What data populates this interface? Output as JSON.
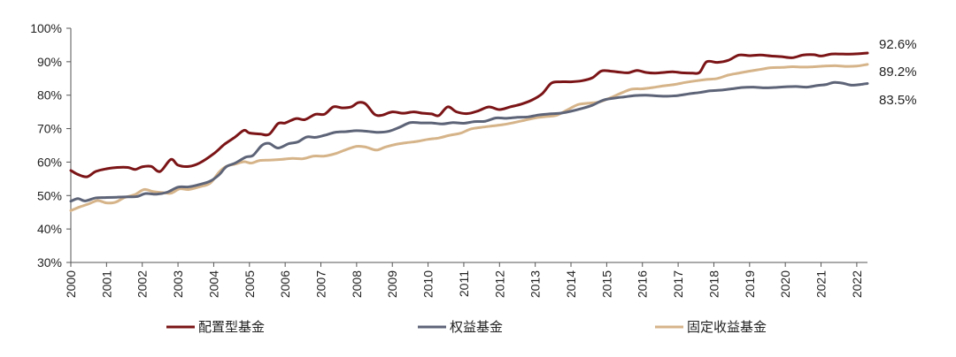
{
  "chart_data": {
    "type": "line",
    "title": "",
    "xlabel": "",
    "ylabel": "",
    "x_ticks": [
      "2000",
      "2001",
      "2002",
      "2003",
      "2004",
      "2005",
      "2006",
      "2007",
      "2008",
      "2009",
      "2010",
      "2011",
      "2012",
      "2013",
      "2014",
      "2015",
      "2016",
      "2017",
      "2018",
      "2019",
      "2020",
      "2021",
      "2022"
    ],
    "y_ticks": [
      "30%",
      "40%",
      "50%",
      "60%",
      "70%",
      "80%",
      "90%",
      "100%"
    ],
    "ylim": [
      30,
      100
    ],
    "xlim": [
      2000,
      2022.3
    ],
    "grid": false,
    "legend_position": "bottom",
    "series": [
      {
        "name": "配置型基金",
        "color": "#7b1416",
        "end_label": "92.6%",
        "points": [
          [
            2000,
            57.5
          ],
          [
            2000.2,
            56.3
          ],
          [
            2000.45,
            55.6
          ],
          [
            2000.7,
            57.2
          ],
          [
            2001,
            58
          ],
          [
            2001.3,
            58.4
          ],
          [
            2001.6,
            58.4
          ],
          [
            2001.8,
            57.8
          ],
          [
            2002,
            58.6
          ],
          [
            2002.25,
            58.7
          ],
          [
            2002.5,
            57.2
          ],
          [
            2002.8,
            60.8
          ],
          [
            2003,
            59.1
          ],
          [
            2003.3,
            58.7
          ],
          [
            2003.6,
            59.7
          ],
          [
            2004,
            62.5
          ],
          [
            2004.3,
            65.3
          ],
          [
            2004.6,
            67.5
          ],
          [
            2004.85,
            69.5
          ],
          [
            2005,
            68.7
          ],
          [
            2005.3,
            68.4
          ],
          [
            2005.55,
            68.3
          ],
          [
            2005.8,
            71.5
          ],
          [
            2006,
            71.7
          ],
          [
            2006.3,
            73
          ],
          [
            2006.55,
            72.7
          ],
          [
            2006.85,
            74.3
          ],
          [
            2007.1,
            74.3
          ],
          [
            2007.35,
            76.5
          ],
          [
            2007.6,
            76.2
          ],
          [
            2007.85,
            76.5
          ],
          [
            2008.05,
            77.8
          ],
          [
            2008.25,
            77.4
          ],
          [
            2008.5,
            74.3
          ],
          [
            2008.7,
            74
          ],
          [
            2009,
            75
          ],
          [
            2009.3,
            74.6
          ],
          [
            2009.6,
            75
          ],
          [
            2009.85,
            74.6
          ],
          [
            2010.1,
            74.4
          ],
          [
            2010.3,
            73.9
          ],
          [
            2010.55,
            76.5
          ],
          [
            2010.8,
            75
          ],
          [
            2011.1,
            74.5
          ],
          [
            2011.4,
            75.3
          ],
          [
            2011.7,
            76.5
          ],
          [
            2012,
            75.7
          ],
          [
            2012.3,
            76.5
          ],
          [
            2012.6,
            77.3
          ],
          [
            2012.9,
            78.5
          ],
          [
            2013.2,
            80.5
          ],
          [
            2013.45,
            83.6
          ],
          [
            2013.7,
            84
          ],
          [
            2014,
            84
          ],
          [
            2014.3,
            84.3
          ],
          [
            2014.6,
            85.2
          ],
          [
            2014.85,
            87.2
          ],
          [
            2015.1,
            87.2
          ],
          [
            2015.35,
            86.9
          ],
          [
            2015.6,
            86.7
          ],
          [
            2015.85,
            87.4
          ],
          [
            2016.1,
            86.8
          ],
          [
            2016.35,
            86.6
          ],
          [
            2016.6,
            86.8
          ],
          [
            2016.85,
            87
          ],
          [
            2017.1,
            86.7
          ],
          [
            2017.4,
            86.6
          ],
          [
            2017.6,
            86.8
          ],
          [
            2017.8,
            90
          ],
          [
            2018.1,
            89.8
          ],
          [
            2018.4,
            90.4
          ],
          [
            2018.7,
            92
          ],
          [
            2019,
            91.8
          ],
          [
            2019.3,
            92
          ],
          [
            2019.6,
            91.7
          ],
          [
            2019.9,
            91.5
          ],
          [
            2020.2,
            91.2
          ],
          [
            2020.5,
            92
          ],
          [
            2020.8,
            92.1
          ],
          [
            2021,
            91.7
          ],
          [
            2021.3,
            92.3
          ],
          [
            2021.6,
            92.3
          ],
          [
            2021.9,
            92.3
          ],
          [
            2022.3,
            92.6
          ]
        ]
      },
      {
        "name": "权益基金",
        "color": "#5e6478",
        "end_label": "83.5%",
        "points": [
          [
            2000,
            48.3
          ],
          [
            2000.2,
            49.1
          ],
          [
            2000.4,
            48.4
          ],
          [
            2000.7,
            49.3
          ],
          [
            2001,
            49.4
          ],
          [
            2001.3,
            49.5
          ],
          [
            2001.6,
            49.6
          ],
          [
            2001.85,
            49.7
          ],
          [
            2002.1,
            50.6
          ],
          [
            2002.4,
            50.4
          ],
          [
            2002.7,
            51
          ],
          [
            2003,
            52.5
          ],
          [
            2003.3,
            52.6
          ],
          [
            2003.6,
            53.3
          ],
          [
            2003.9,
            54.3
          ],
          [
            2004.15,
            56.2
          ],
          [
            2004.35,
            58.6
          ],
          [
            2004.6,
            59.7
          ],
          [
            2004.9,
            61.5
          ],
          [
            2005.1,
            62
          ],
          [
            2005.35,
            65
          ],
          [
            2005.55,
            65.6
          ],
          [
            2005.8,
            64.2
          ],
          [
            2006.1,
            65.5
          ],
          [
            2006.35,
            66
          ],
          [
            2006.6,
            67.5
          ],
          [
            2006.85,
            67.4
          ],
          [
            2007.1,
            68
          ],
          [
            2007.4,
            68.9
          ],
          [
            2007.7,
            69.1
          ],
          [
            2008,
            69.4
          ],
          [
            2008.3,
            69.2
          ],
          [
            2008.6,
            68.9
          ],
          [
            2008.9,
            69.2
          ],
          [
            2009.2,
            70.4
          ],
          [
            2009.5,
            71.8
          ],
          [
            2009.8,
            71.7
          ],
          [
            2010.1,
            71.7
          ],
          [
            2010.4,
            71.4
          ],
          [
            2010.7,
            71.8
          ],
          [
            2011,
            71.6
          ],
          [
            2011.3,
            72.1
          ],
          [
            2011.6,
            72.2
          ],
          [
            2011.9,
            73.2
          ],
          [
            2012.2,
            73.1
          ],
          [
            2012.5,
            73.4
          ],
          [
            2012.8,
            73.5
          ],
          [
            2013.1,
            74.1
          ],
          [
            2013.4,
            74.4
          ],
          [
            2013.7,
            74.6
          ],
          [
            2014,
            75.2
          ],
          [
            2014.3,
            76
          ],
          [
            2014.6,
            77
          ],
          [
            2014.9,
            78.5
          ],
          [
            2015.2,
            79.1
          ],
          [
            2015.5,
            79.5
          ],
          [
            2015.8,
            79.9
          ],
          [
            2016.1,
            80
          ],
          [
            2016.4,
            79.8
          ],
          [
            2016.7,
            79.7
          ],
          [
            2017,
            79.9
          ],
          [
            2017.3,
            80.4
          ],
          [
            2017.6,
            80.8
          ],
          [
            2017.9,
            81.3
          ],
          [
            2018.2,
            81.5
          ],
          [
            2018.5,
            81.9
          ],
          [
            2018.8,
            82.3
          ],
          [
            2019.1,
            82.4
          ],
          [
            2019.4,
            82.2
          ],
          [
            2019.7,
            82.3
          ],
          [
            2020,
            82.5
          ],
          [
            2020.3,
            82.6
          ],
          [
            2020.6,
            82.4
          ],
          [
            2020.9,
            82.9
          ],
          [
            2021.15,
            83.2
          ],
          [
            2021.35,
            83.8
          ],
          [
            2021.6,
            83.6
          ],
          [
            2021.85,
            83
          ],
          [
            2022.1,
            83.2
          ],
          [
            2022.3,
            83.5
          ]
        ]
      },
      {
        "name": "固定收益基金",
        "color": "#d6b48a",
        "end_label": "89.2%",
        "points": [
          [
            2000,
            45.5
          ],
          [
            2000.25,
            46.6
          ],
          [
            2000.5,
            47.5
          ],
          [
            2000.75,
            48.5
          ],
          [
            2001,
            47.8
          ],
          [
            2001.25,
            48
          ],
          [
            2001.5,
            49.4
          ],
          [
            2001.8,
            50.3
          ],
          [
            2002.05,
            51.8
          ],
          [
            2002.3,
            51.2
          ],
          [
            2002.55,
            50.9
          ],
          [
            2002.8,
            50.7
          ],
          [
            2003.05,
            52
          ],
          [
            2003.3,
            51.8
          ],
          [
            2003.6,
            52.6
          ],
          [
            2003.9,
            53.7
          ],
          [
            2004.15,
            57
          ],
          [
            2004.35,
            58.7
          ],
          [
            2004.6,
            59.4
          ],
          [
            2004.85,
            60.1
          ],
          [
            2005.05,
            59.7
          ],
          [
            2005.3,
            60.5
          ],
          [
            2005.6,
            60.6
          ],
          [
            2005.9,
            60.8
          ],
          [
            2006.2,
            61.1
          ],
          [
            2006.5,
            61
          ],
          [
            2006.8,
            61.8
          ],
          [
            2007.1,
            61.8
          ],
          [
            2007.4,
            62.5
          ],
          [
            2007.7,
            63.7
          ],
          [
            2008,
            64.7
          ],
          [
            2008.25,
            64.5
          ],
          [
            2008.55,
            63.6
          ],
          [
            2008.8,
            64.5
          ],
          [
            2009.1,
            65.3
          ],
          [
            2009.4,
            65.8
          ],
          [
            2009.7,
            66.2
          ],
          [
            2010,
            66.8
          ],
          [
            2010.3,
            67.2
          ],
          [
            2010.6,
            68
          ],
          [
            2010.9,
            68.6
          ],
          [
            2011.2,
            69.9
          ],
          [
            2011.5,
            70.4
          ],
          [
            2011.8,
            70.8
          ],
          [
            2012.1,
            71.2
          ],
          [
            2012.4,
            71.8
          ],
          [
            2012.7,
            72.5
          ],
          [
            2013,
            73.2
          ],
          [
            2013.3,
            73.6
          ],
          [
            2013.6,
            74
          ],
          [
            2013.9,
            75.6
          ],
          [
            2014.2,
            77.2
          ],
          [
            2014.5,
            77.6
          ],
          [
            2014.8,
            78
          ],
          [
            2015.1,
            79.2
          ],
          [
            2015.4,
            80.6
          ],
          [
            2015.7,
            81.8
          ],
          [
            2016,
            81.9
          ],
          [
            2016.3,
            82.3
          ],
          [
            2016.6,
            82.8
          ],
          [
            2016.9,
            83.2
          ],
          [
            2017.2,
            83.8
          ],
          [
            2017.5,
            84.3
          ],
          [
            2017.8,
            84.7
          ],
          [
            2018.1,
            85
          ],
          [
            2018.4,
            86
          ],
          [
            2018.7,
            86.6
          ],
          [
            2019,
            87.2
          ],
          [
            2019.3,
            87.7
          ],
          [
            2019.6,
            88.2
          ],
          [
            2019.9,
            88.3
          ],
          [
            2020.2,
            88.5
          ],
          [
            2020.5,
            88.4
          ],
          [
            2020.8,
            88.5
          ],
          [
            2021.1,
            88.7
          ],
          [
            2021.4,
            88.8
          ],
          [
            2021.7,
            88.6
          ],
          [
            2022,
            88.7
          ],
          [
            2022.3,
            89.2
          ]
        ]
      }
    ]
  }
}
